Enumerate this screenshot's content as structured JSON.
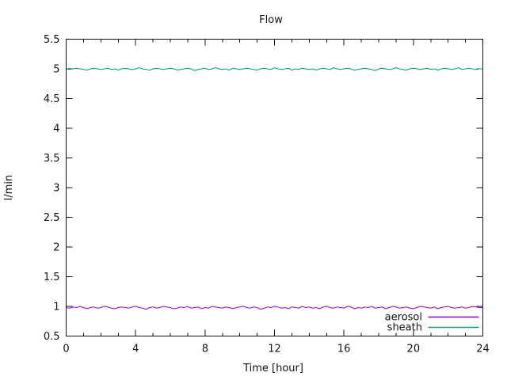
{
  "chart_data": {
    "type": "line",
    "title": "Flow",
    "xlabel": "Time [hour]",
    "ylabel": "l/min",
    "xlim": [
      0,
      24
    ],
    "ylim": [
      0.5,
      5.5
    ],
    "grid": false,
    "background": "#ffffff",
    "axis_color": "#111111",
    "x_major_ticks": [
      0,
      4,
      8,
      12,
      16,
      20,
      24
    ],
    "x_major_tick_labels": [
      "0",
      "4",
      "8",
      "12",
      "16",
      "20",
      "24"
    ],
    "x_minor_tick_step": 1,
    "y_major_ticks": [
      0.5,
      1,
      1.5,
      2,
      2.5,
      3,
      3.5,
      4,
      4.5,
      5,
      5.5
    ],
    "y_major_tick_labels": [
      "0.5",
      "1",
      "1.5",
      "2",
      "2.5",
      "3",
      "3.5",
      "4",
      "4.5",
      "5",
      "5.5"
    ],
    "legend_position": "inside-bottom-right",
    "series": [
      {
        "name": "aerosol",
        "color": "#9400d3",
        "x_start": 0,
        "x_step": 0.2,
        "values": [
          0.98,
          0.97,
          0.99,
          0.98,
          1.0,
          0.98,
          0.96,
          0.98,
          0.99,
          0.97,
          0.98,
          1.0,
          0.99,
          0.97,
          0.96,
          0.98,
          0.99,
          0.98,
          0.97,
          0.99,
          1.0,
          0.98,
          0.97,
          0.95,
          0.98,
          0.99,
          0.97,
          0.98,
          1.0,
          0.99,
          0.98,
          0.96,
          0.97,
          0.99,
          0.98,
          1.0,
          0.97,
          0.98,
          0.99,
          0.96,
          0.98,
          0.97,
          1.0,
          0.99,
          0.98,
          0.97,
          0.99,
          0.98,
          0.96,
          0.98,
          0.99,
          1.0,
          0.98,
          0.97,
          0.99,
          0.98,
          0.95,
          0.97,
          0.99,
          0.98,
          1.0,
          0.99,
          0.97,
          0.98,
          0.96,
          0.99,
          0.98,
          0.97,
          1.0,
          0.98,
          0.99,
          0.97,
          0.98,
          0.96,
          0.99,
          1.0,
          0.98,
          0.97,
          0.99,
          0.98,
          0.97,
          1.0,
          0.99,
          0.96,
          0.98,
          0.97,
          0.99,
          0.98,
          1.0,
          0.97,
          0.98,
          0.99,
          0.96,
          0.98,
          1.0,
          0.99,
          0.97,
          0.98,
          0.99,
          0.97,
          0.96,
          0.98,
          1.0,
          0.99,
          0.98,
          0.97,
          0.99,
          0.96,
          0.98,
          0.99,
          1.0,
          0.98,
          0.97,
          0.98,
          0.99,
          0.97,
          0.98,
          1.0,
          0.99,
          0.98,
          0.98
        ]
      },
      {
        "name": "sheath",
        "color": "#009e73",
        "x_start": 0,
        "x_step": 0.2,
        "values": [
          5.0,
          4.99,
          5.0,
          5.01,
          5.0,
          4.99,
          4.98,
          5.0,
          5.01,
          5.0,
          4.99,
          5.0,
          5.01,
          4.99,
          5.0,
          4.98,
          5.0,
          5.01,
          5.0,
          4.99,
          5.0,
          5.02,
          5.0,
          4.99,
          4.98,
          5.0,
          5.01,
          5.0,
          4.99,
          5.0,
          5.01,
          5.0,
          4.98,
          4.99,
          5.0,
          5.01,
          5.0,
          4.97,
          4.99,
          5.0,
          5.01,
          4.99,
          5.0,
          5.02,
          5.0,
          4.99,
          5.0,
          4.98,
          5.01,
          5.0,
          4.99,
          5.0,
          5.01,
          5.0,
          4.99,
          4.98,
          5.0,
          5.01,
          5.0,
          4.99,
          5.02,
          5.0,
          4.99,
          5.0,
          5.01,
          4.98,
          5.0,
          4.99,
          5.01,
          5.0,
          4.99,
          5.0,
          4.98,
          5.0,
          5.01,
          5.0,
          4.99,
          5.02,
          5.0,
          4.99,
          5.0,
          5.01,
          5.0,
          4.98,
          4.99,
          5.0,
          5.01,
          5.0,
          4.99,
          4.97,
          5.0,
          5.01,
          5.0,
          4.99,
          5.0,
          5.02,
          5.0,
          4.99,
          4.98,
          5.0,
          5.01,
          5.0,
          4.99,
          5.0,
          5.01,
          4.99,
          5.0,
          4.98,
          5.0,
          5.01,
          5.0,
          4.99,
          5.0,
          5.02,
          4.99,
          5.0,
          5.01,
          5.0,
          4.99,
          5.0,
          5.0
        ]
      }
    ]
  }
}
